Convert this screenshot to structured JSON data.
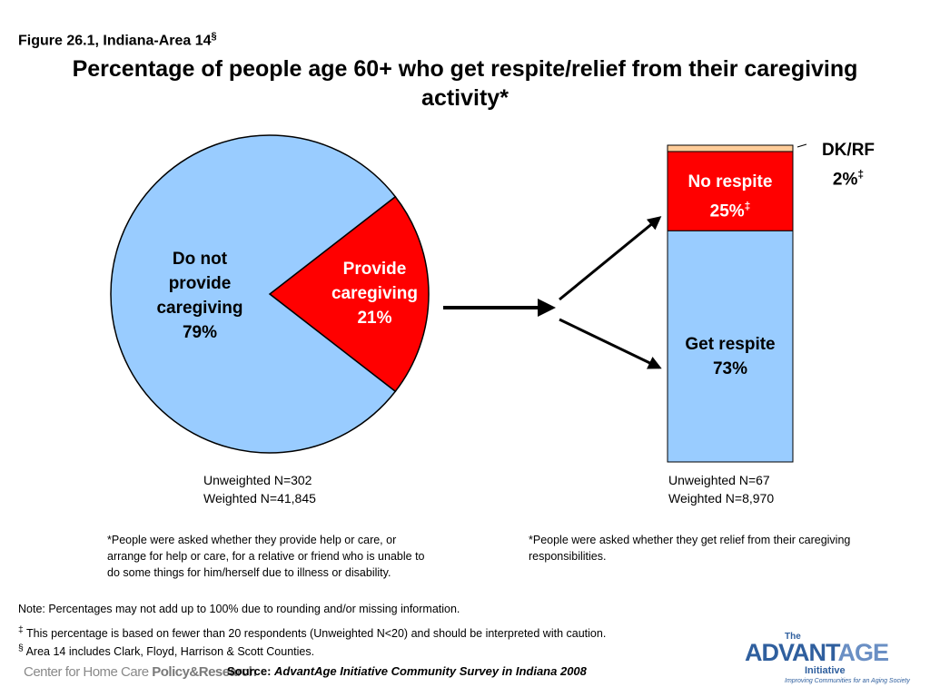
{
  "header": {
    "figure_label": "Figure 26.1, Indiana-Area 14",
    "figure_mark": "§",
    "title": "Percentage of people age 60+ who get respite/relief from their caregiving activity*"
  },
  "chart_data": [
    {
      "type": "pie",
      "slices": [
        {
          "label_lines": [
            "Do not",
            "provide",
            "caregiving"
          ],
          "value": 79,
          "pct_text": "79%",
          "color": "#99ccff"
        },
        {
          "label_lines": [
            "Provide",
            "caregiving"
          ],
          "value": 21,
          "pct_text": "21%",
          "color": "#ff0000"
        }
      ],
      "n_unweighted": "Unweighted N=302",
      "n_weighted": "Weighted N=41,845",
      "footnote": "*People were asked whether they provide help or care, or arrange for help or care, for a relative or friend who is unable to do some things for him/herself due to illness or disability."
    },
    {
      "type": "bar",
      "stacked": true,
      "segments": [
        {
          "label": "Get respite",
          "value": 73,
          "pct_text": "73%",
          "color": "#99ccff"
        },
        {
          "label": "No respite",
          "value": 25,
          "pct_text": "25%",
          "mark": "‡",
          "color": "#ff0000"
        },
        {
          "label": "DK/RF",
          "value": 2,
          "pct_text": "2%",
          "mark": "‡",
          "color": "#ffcc99"
        }
      ],
      "n_unweighted": "Unweighted N=67",
      "n_weighted": "Weighted N=8,970",
      "footnote": "*People were asked whether they get relief from their caregiving responsibilities."
    }
  ],
  "notes": {
    "percent": "Note: Percentages may not add up to 100% due to rounding and/or missing information.",
    "dagger_mark": "‡",
    "dagger": " This percentage is based on fewer than 20 respondents (Unweighted N<20) and should be interpreted with caution.",
    "section_mark": "§",
    "section": " Area 14 includes Clark, Floyd, Harrison & Scott Counties."
  },
  "source": {
    "label": "Source: ",
    "title": "AdvantAge Initiative Community Survey in Indiana 2008"
  },
  "logos": {
    "chcpr_prefix": "Center for Home Care ",
    "chcpr_strong": "Policy&Research",
    "advantage_the": "The",
    "advantage_name_a": "ADVANT",
    "advantage_name_b": "AGE",
    "advantage_initiative": "Initiative",
    "advantage_tagline": "Improving Communities for an Aging Society"
  }
}
